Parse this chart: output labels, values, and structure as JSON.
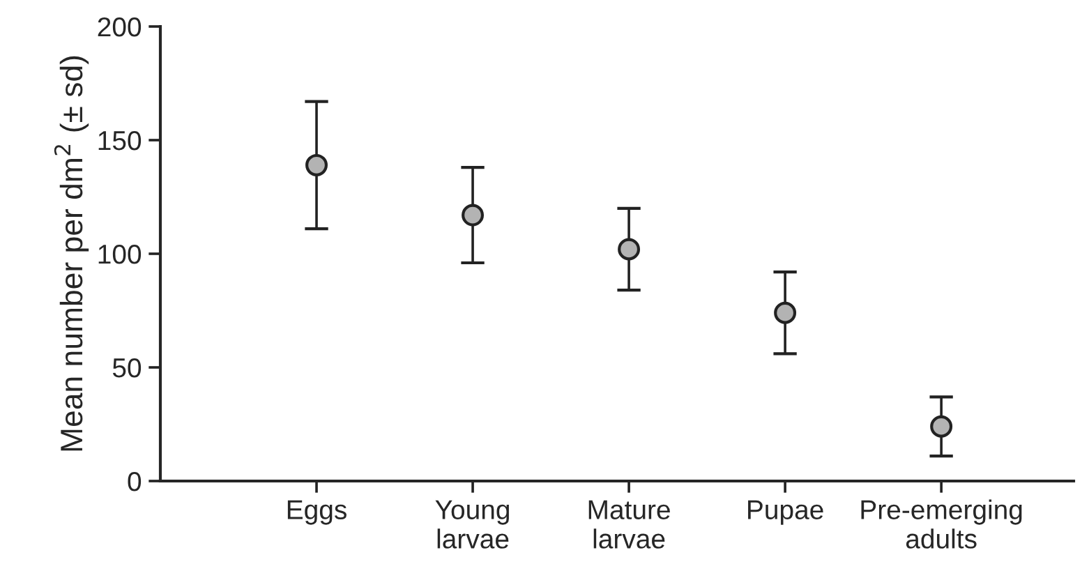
{
  "chart_data": {
    "type": "scatter",
    "ylabel": "Mean number per dm$^{2}$ (± sd)",
    "categories": [
      "Eggs",
      "Young\nlarvae",
      "Mature\nlarvae",
      "Pupae",
      "Pre-emerging\nadults"
    ],
    "series": [
      {
        "color": "#b3b3b3",
        "values": [
          139,
          117,
          102,
          74,
          24
        ],
        "errors": [
          28,
          21,
          18,
          18,
          13
        ]
      }
    ],
    "ylim": [
      0,
      200
    ],
    "yticks": [
      0,
      50,
      100,
      150,
      200
    ],
    "marker": "circle",
    "grid": false
  }
}
